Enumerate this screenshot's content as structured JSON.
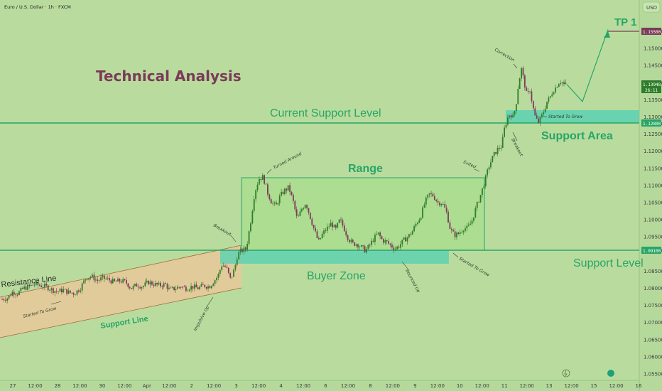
{
  "header": {
    "symbol": "Euro / U.S. Dollar · 1h · FXCM",
    "currency_button": "USD"
  },
  "title": "Technical Analysis",
  "labels": {
    "current_support": "Current Support Level",
    "support_area": "Support Area",
    "range": "Range",
    "buyer_zone": "Buyer Zone",
    "support_level": "Support Level",
    "resistance_line": "Resistance Line",
    "support_line": "Support Line",
    "tp1": "TP 1"
  },
  "annotations": {
    "started_to_grow_1": "Started To Grow",
    "impulsive_up": "Impulsive Up",
    "breakout_1": "Breakout",
    "turned_around": "Turned Around",
    "bounced_up": "Bounced Up",
    "started_to_grow_2": "Started To Grow",
    "exited": "Exited",
    "breakout_2": "Breakout",
    "correction": "Correction",
    "started_to_grow_3": "Started To Grow"
  },
  "price_tags": {
    "tp": "1.15500",
    "last": "1.13948",
    "countdown": "26:11",
    "current_support": "1.12800",
    "support": "1.09100"
  },
  "colors": {
    "background": "#b9dc9e",
    "accent_green": "#27a567",
    "title": "#7b3b58",
    "candle_up": "#2f7d2b",
    "candle_down": "#7b3b58",
    "zone_teal": "#5ad1b3",
    "channel_fill": "#f0c59a",
    "range_fill": "#a8dd8a"
  },
  "chart_data": {
    "type": "candlestick",
    "instrument": "Euro / U.S. Dollar",
    "timeframe": "1h",
    "source": "FXCM",
    "y_axis": {
      "min": 1.05,
      "max": 1.16,
      "ticks": [
        "1.05500",
        "1.06000",
        "1.06500",
        "1.07000",
        "1.07500",
        "1.08000",
        "1.08500",
        "1.09100",
        "1.09500",
        "1.10000",
        "1.10500",
        "1.11000",
        "1.11500",
        "1.12000",
        "1.12500",
        "1.12800",
        "1.13000",
        "1.13500",
        "1.14000",
        "1.14500",
        "1.15000",
        "1.15500"
      ]
    },
    "x_ticks": [
      "27",
      "12:00",
      "28",
      "12:00",
      "30",
      "12:00",
      "Apr",
      "12:00",
      "2",
      "12:00",
      "3",
      "12:00",
      "4",
      "12:00",
      "6",
      "12:00",
      "8",
      "12:00",
      "9",
      "12:00",
      "10",
      "12:00",
      "11",
      "12:00",
      "13",
      "12:00",
      "15",
      "12:00",
      "16"
    ],
    "levels": [
      {
        "name": "Current Support Level",
        "price": 1.128
      },
      {
        "name": "Support Level",
        "price": 1.091
      },
      {
        "name": "TP 1",
        "price": 1.155
      }
    ],
    "zones": [
      {
        "name": "Range",
        "from": 1.091,
        "to": 1.112
      },
      {
        "name": "Buyer Zone",
        "from": 1.0875,
        "to": 1.091
      },
      {
        "name": "Support Area",
        "from": 1.128,
        "to": 1.1318
      }
    ],
    "channel": {
      "upper": "Resistance Line",
      "lower": "Support Line"
    },
    "projection": [
      [
        0,
        1.1395
      ],
      [
        1,
        1.1345
      ],
      [
        2,
        1.1555
      ]
    ],
    "path": [
      [
        0,
        1.0768
      ],
      [
        8,
        1.0772
      ],
      [
        15,
        1.079
      ],
      [
        22,
        1.0785
      ],
      [
        30,
        1.08
      ],
      [
        38,
        1.0805
      ],
      [
        46,
        1.0812
      ],
      [
        54,
        1.0808
      ],
      [
        62,
        1.0805
      ],
      [
        70,
        1.0796
      ],
      [
        78,
        1.079
      ],
      [
        86,
        1.0795
      ],
      [
        94,
        1.0788
      ],
      [
        102,
        1.0785
      ],
      [
        110,
        1.08
      ],
      [
        118,
        1.083
      ],
      [
        126,
        1.0835
      ],
      [
        134,
        1.0822
      ],
      [
        142,
        1.083
      ],
      [
        150,
        1.0825
      ],
      [
        158,
        1.0818
      ],
      [
        166,
        1.0822
      ],
      [
        174,
        1.0818
      ],
      [
        182,
        1.08
      ],
      [
        190,
        1.081
      ],
      [
        198,
        1.0805
      ],
      [
        206,
        1.0818
      ],
      [
        214,
        1.0812
      ],
      [
        222,
        1.0808
      ],
      [
        230,
        1.0812
      ],
      [
        236,
        1.0795
      ],
      [
        244,
        1.08
      ],
      [
        252,
        1.0805
      ],
      [
        260,
        1.08
      ],
      [
        268,
        1.0805
      ],
      [
        276,
        1.08
      ],
      [
        284,
        1.0808
      ],
      [
        292,
        1.0805
      ],
      [
        298,
        1.082
      ],
      [
        304,
        1.0835
      ],
      [
        310,
        1.087
      ],
      [
        316,
        1.086
      ],
      [
        322,
        1.0825
      ],
      [
        328,
        1.086
      ],
      [
        332,
        1.09
      ],
      [
        338,
        1.091
      ],
      [
        344,
        1.0915
      ],
      [
        350,
        1.099
      ],
      [
        356,
        1.108
      ],
      [
        362,
        1.112
      ],
      [
        368,
        1.1125
      ],
      [
        374,
        1.108
      ],
      [
        380,
        1.105
      ],
      [
        386,
        1.104
      ],
      [
        392,
        1.107
      ],
      [
        398,
        1.1085
      ],
      [
        404,
        1.1095
      ],
      [
        410,
        1.1055
      ],
      [
        416,
        1.1
      ],
      [
        422,
        1.103
      ],
      [
        428,
        1.105
      ],
      [
        434,
        1.101
      ],
      [
        440,
        1.097
      ],
      [
        446,
        1.0935
      ],
      [
        452,
        1.096
      ],
      [
        458,
        1.0975
      ],
      [
        464,
        1.099
      ],
      [
        470,
        1.097
      ],
      [
        476,
        1.1
      ],
      [
        482,
        1.0975
      ],
      [
        488,
        1.0945
      ],
      [
        494,
        1.093
      ],
      [
        500,
        1.093
      ],
      [
        506,
        1.092
      ],
      [
        512,
        1.091
      ],
      [
        518,
        1.0925
      ],
      [
        524,
        1.0945
      ],
      [
        530,
        1.096
      ],
      [
        536,
        1.094
      ],
      [
        542,
        1.0935
      ],
      [
        548,
        1.0925
      ],
      [
        554,
        1.0915
      ],
      [
        560,
        1.0925
      ],
      [
        566,
        1.094
      ],
      [
        572,
        1.095
      ],
      [
        578,
        1.0965
      ],
      [
        584,
        1.099
      ],
      [
        590,
        1.101
      ],
      [
        596,
        1.105
      ],
      [
        602,
        1.1075
      ],
      [
        608,
        1.107
      ],
      [
        614,
        1.105
      ],
      [
        620,
        1.105
      ],
      [
        626,
        1.1025
      ],
      [
        632,
        1.097
      ],
      [
        638,
        1.0955
      ],
      [
        644,
        1.096
      ],
      [
        650,
        1.0975
      ],
      [
        656,
        1.0975
      ],
      [
        662,
        1.0995
      ],
      [
        668,
        1.1035
      ],
      [
        674,
        1.107
      ],
      [
        680,
        1.111
      ],
      [
        686,
        1.1155
      ],
      [
        692,
        1.1185
      ],
      [
        698,
        1.1205
      ],
      [
        704,
        1.1215
      ],
      [
        708,
        1.1265
      ],
      [
        712,
        1.1295
      ],
      [
        716,
        1.131
      ],
      [
        720,
        1.13
      ],
      [
        724,
        1.133
      ],
      [
        728,
        1.14
      ],
      [
        732,
        1.144
      ],
      [
        736,
        1.14
      ],
      [
        740,
        1.136
      ],
      [
        744,
        1.138
      ],
      [
        748,
        1.133
      ],
      [
        752,
        1.1295
      ],
      [
        756,
        1.1285
      ],
      [
        760,
        1.13
      ],
      [
        764,
        1.132
      ],
      [
        768,
        1.1345
      ],
      [
        772,
        1.1355
      ],
      [
        776,
        1.1375
      ],
      [
        780,
        1.1385
      ],
      [
        784,
        1.14
      ],
      [
        788,
        1.1405
      ],
      [
        792,
        1.1395
      ],
      [
        796,
        1.1395
      ]
    ]
  }
}
